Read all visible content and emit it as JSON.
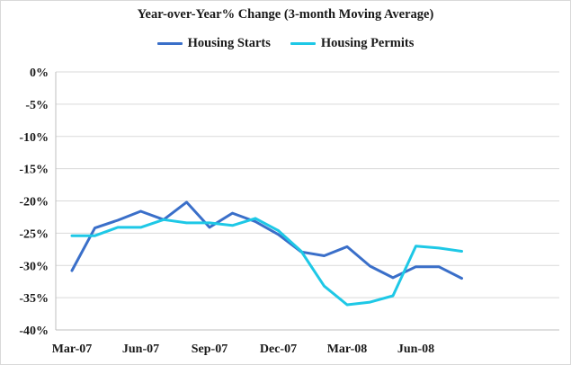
{
  "chart_data": {
    "type": "line",
    "title": "Year-over-Year% Change (3-month Moving Average)",
    "xlabel": "",
    "ylabel": "",
    "ylim": [
      -40,
      0
    ],
    "ytick_values": [
      0,
      -5,
      -10,
      -15,
      -20,
      -25,
      -30,
      -35,
      -40
    ],
    "ytick_labels": [
      "0%",
      "-5%",
      "-10%",
      "-15%",
      "-20%",
      "-25%",
      "-30%",
      "-35%",
      "-40%"
    ],
    "x": [
      "Mar-07",
      "Apr-07",
      "May-07",
      "Jun-07",
      "Jul-07",
      "Aug-07",
      "Sep-07",
      "Oct-07",
      "Nov-07",
      "Dec-07",
      "Jan-08",
      "Feb-08",
      "Mar-08",
      "Apr-08",
      "May-08",
      "Jun-08",
      "Jul-08",
      "Aug-08"
    ],
    "xtick_labels": [
      "Mar-07",
      "Jun-07",
      "Sep-07",
      "Dec-07",
      "Mar-08",
      "Jun-08"
    ],
    "xtick_indices": [
      0,
      3,
      6,
      9,
      12,
      15
    ],
    "grid": true,
    "legend_position": "top-center",
    "series": [
      {
        "name": "Housing Starts",
        "color": "#3a6fc9",
        "values": [
          -30.8,
          -24.2,
          -23.0,
          -21.6,
          -22.9,
          -20.2,
          -24.1,
          -21.9,
          -23.2,
          -25.2,
          -27.9,
          -28.5,
          -27.1,
          -30.1,
          -31.9,
          -30.2,
          -30.2,
          -32.0
        ]
      },
      {
        "name": "Housing Permits",
        "color": "#1ec8e6",
        "values": [
          -25.4,
          -25.4,
          -24.1,
          -24.1,
          -22.9,
          -23.4,
          -23.4,
          -23.8,
          -22.7,
          -24.6,
          -27.8,
          -33.2,
          -36.1,
          -35.7,
          -34.7,
          -27.0,
          -27.3,
          -27.8
        ]
      }
    ]
  }
}
